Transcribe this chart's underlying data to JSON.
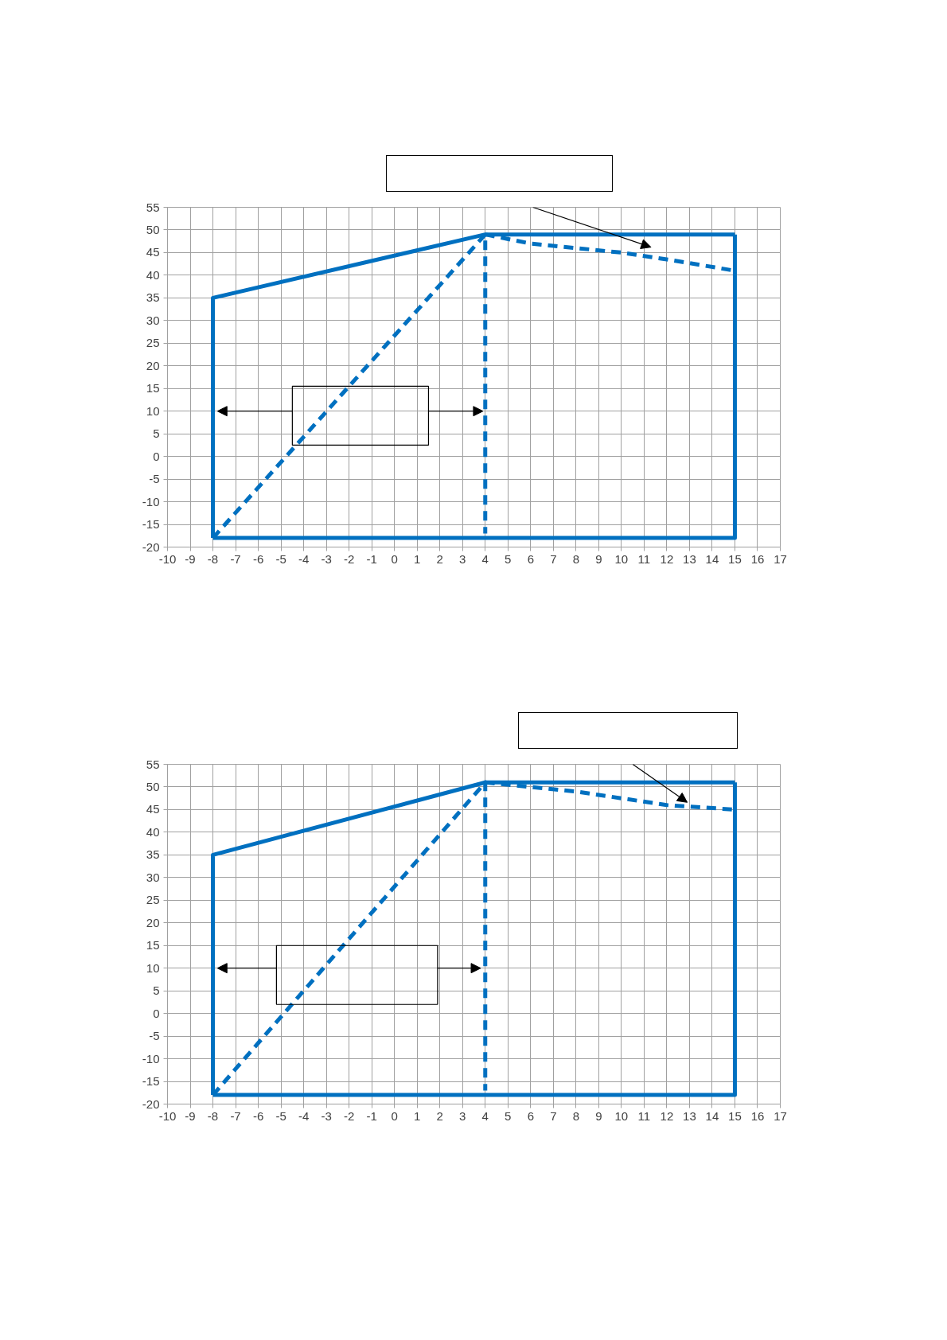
{
  "chart_data": [
    {
      "type": "line",
      "xlim": [
        -10,
        17
      ],
      "ylim": [
        -20,
        55
      ],
      "xticks": [
        -10,
        -9,
        -8,
        -7,
        -6,
        -5,
        -4,
        -3,
        -2,
        -1,
        0,
        1,
        2,
        3,
        4,
        5,
        6,
        7,
        8,
        9,
        10,
        11,
        12,
        13,
        14,
        15,
        16,
        17
      ],
      "yticks": [
        -20,
        -15,
        -10,
        -5,
        0,
        5,
        10,
        15,
        20,
        25,
        30,
        35,
        40,
        45,
        50,
        55
      ],
      "grid": true,
      "series": [
        {
          "color": "#0070c0",
          "line_style": "solid",
          "x": [
            -8,
            -8,
            4,
            15
          ],
          "values": [
            -18,
            35,
            49,
            49
          ]
        },
        {
          "color": "#0070c0",
          "line_style": "solid",
          "x": [
            15,
            15,
            -8
          ],
          "values": [
            49,
            -18,
            -18
          ]
        },
        {
          "color": "#0070c0",
          "line_style": "dashed",
          "x": [
            -8,
            4,
            4
          ],
          "values": [
            -18,
            49,
            -17
          ]
        },
        {
          "color": "#0070c0",
          "line_style": "dashed",
          "x": [
            4,
            6,
            8,
            10,
            12,
            15
          ],
          "values": [
            49,
            47,
            46,
            45,
            43.5,
            41
          ]
        }
      ]
    },
    {
      "type": "line",
      "xlim": [
        -10,
        17
      ],
      "ylim": [
        -20,
        55
      ],
      "xticks": [
        -10,
        -9,
        -8,
        -7,
        -6,
        -5,
        -4,
        -3,
        -2,
        -1,
        0,
        1,
        2,
        3,
        4,
        5,
        6,
        7,
        8,
        9,
        10,
        11,
        12,
        13,
        14,
        15,
        16,
        17
      ],
      "yticks": [
        -20,
        -15,
        -10,
        -5,
        0,
        5,
        10,
        15,
        20,
        25,
        30,
        35,
        40,
        45,
        50,
        55
      ],
      "grid": true,
      "series": [
        {
          "color": "#0070c0",
          "line_style": "solid",
          "x": [
            -8,
            -8,
            4,
            15
          ],
          "values": [
            -18,
            35,
            51,
            51
          ]
        },
        {
          "color": "#0070c0",
          "line_style": "solid",
          "x": [
            15,
            15,
            -8
          ],
          "values": [
            51,
            -18,
            -18
          ]
        },
        {
          "color": "#0070c0",
          "line_style": "dashed",
          "x": [
            -8,
            4,
            4
          ],
          "values": [
            -18,
            51,
            -17
          ]
        },
        {
          "color": "#0070c0",
          "line_style": "dashed",
          "x": [
            4,
            6,
            8,
            10,
            12,
            15
          ],
          "values": [
            51,
            50,
            49,
            47.5,
            46,
            45
          ]
        }
      ]
    }
  ]
}
